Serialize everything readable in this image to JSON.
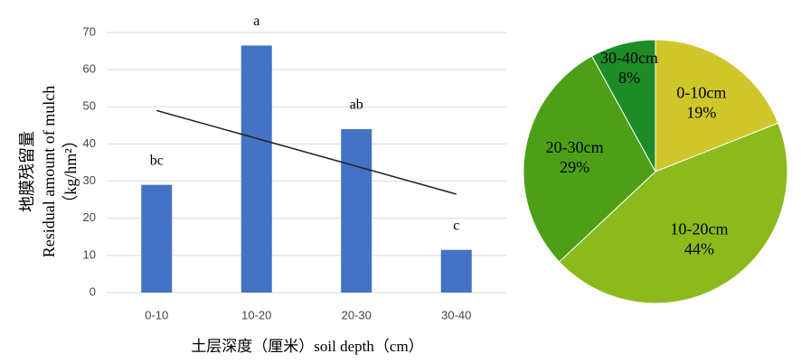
{
  "chart_data": [
    {
      "type": "bar",
      "y_label_lines": [
        "地膜残留量",
        "Residual amount of mulch",
        "（kg/hm²）"
      ],
      "x_label": "土层深度（厘米）soil depth（cm）",
      "categories": [
        "0-10",
        "10-20",
        "20-30",
        "30-40"
      ],
      "values": [
        29,
        66.5,
        44,
        11.5
      ],
      "annotations": [
        "bc",
        "a",
        "ab",
        "c"
      ],
      "trendline": [
        49,
        41.5,
        34,
        26.5
      ],
      "color": "#4472c4",
      "trend_color": "#222222",
      "ylim": [
        0,
        70
      ],
      "yticks": [
        0,
        10,
        20,
        30,
        40,
        50,
        60,
        70
      ],
      "grid": true
    },
    {
      "type": "pie",
      "categories": [
        "0-10cm",
        "10-20cm",
        "20-30cm",
        "30-40cm"
      ],
      "values": [
        19,
        44,
        29,
        8
      ],
      "value_labels": [
        "19%",
        "44%",
        "29%",
        "8%"
      ],
      "colors": [
        "#cfc62a",
        "#8cba1c",
        "#4d9f17",
        "#1e8c26"
      ]
    }
  ]
}
